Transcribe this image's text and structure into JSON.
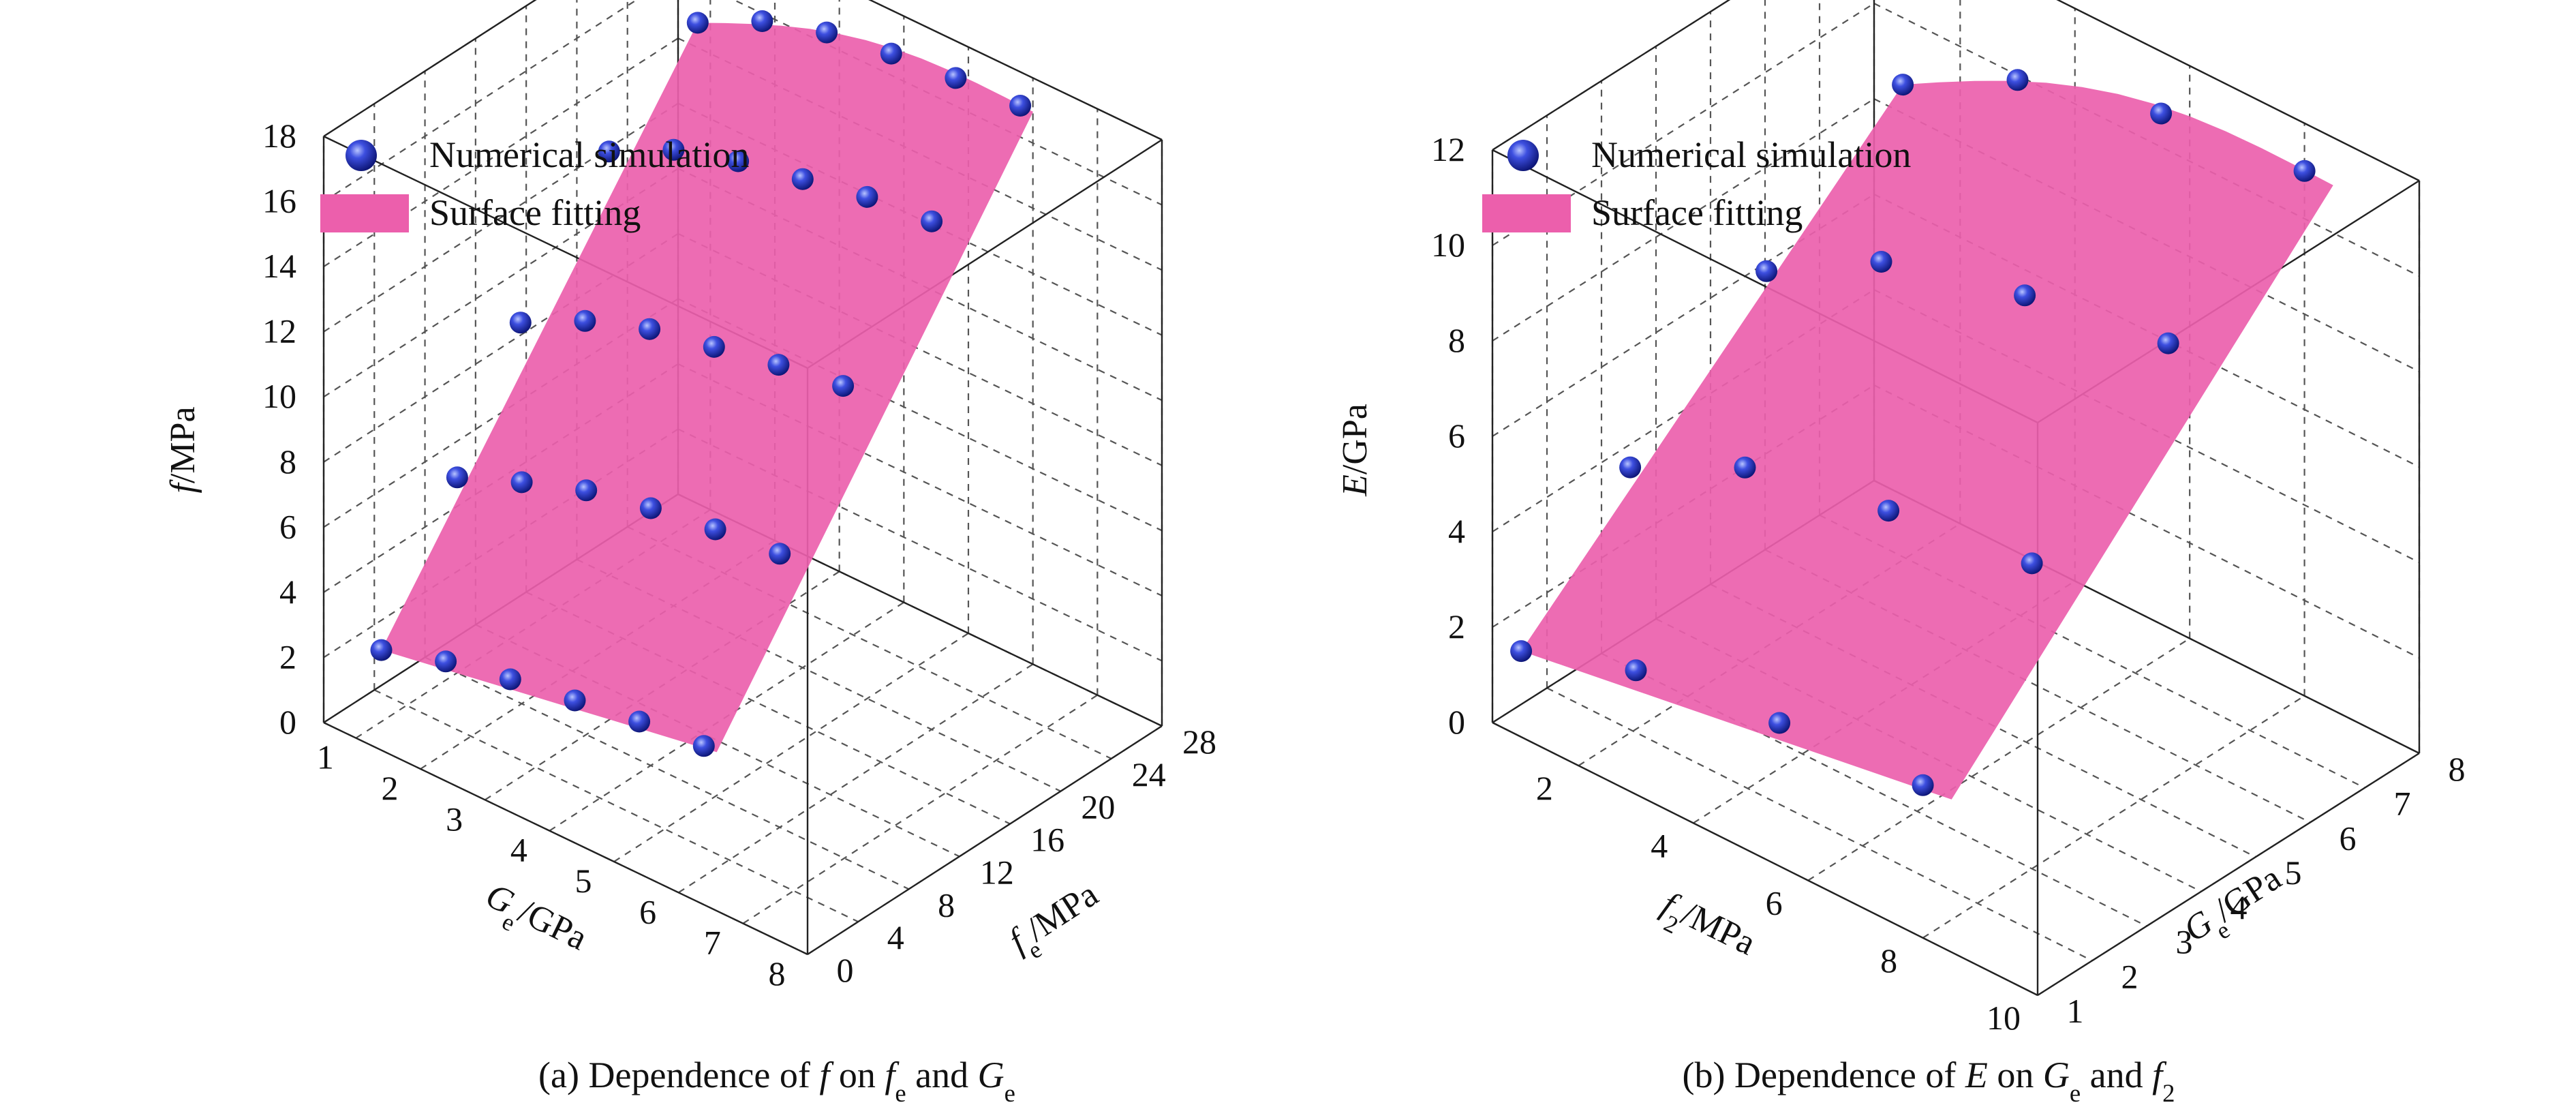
{
  "colors": {
    "surface": "#ec5fac",
    "marker": "#1f2fb0",
    "axis": "#222222",
    "grid": "#555555"
  },
  "legend": {
    "marker_label": "Numerical simulation",
    "surface_label": "Surface fitting"
  },
  "chart_data": [
    {
      "type": "scatter",
      "subtype": "3d-scatter-with-fitted-surface",
      "caption_parts": [
        "(a) Dependence of ",
        "f",
        " on ",
        "f",
        "e",
        " and ",
        "G",
        "e"
      ],
      "zlabel_parts": [
        "f",
        "/MPa"
      ],
      "xlabel_parts": [
        "G",
        "e",
        "/GPa"
      ],
      "ylabel_parts": [
        "f",
        "e",
        "/MPa"
      ],
      "x_ticks": [
        "1",
        "2",
        "3",
        "4",
        "5",
        "6",
        "7",
        "8"
      ],
      "y_ticks": [
        "0",
        "4",
        "8",
        "12",
        "16",
        "20",
        "24",
        "28"
      ],
      "z_ticks": [
        "0",
        "2",
        "4",
        "6",
        "8",
        "10",
        "12",
        "14",
        "16",
        "18"
      ],
      "xlim": [
        0.5,
        8
      ],
      "ylim": [
        0,
        28
      ],
      "zlim": [
        0,
        18
      ],
      "grid": true,
      "legend_position": "top-left",
      "series": [
        {
          "name": "Numerical simulation",
          "points": [
            [
              1,
              2,
              2.2
            ],
            [
              2,
              2,
              2.8
            ],
            [
              3,
              2,
              3.2
            ],
            [
              4,
              2,
              3.5
            ],
            [
              5,
              2,
              3.8
            ],
            [
              6,
              2,
              4.0
            ],
            [
              1,
              8,
              6.0
            ],
            [
              2,
              8,
              6.8
            ],
            [
              3,
              8,
              7.5
            ],
            [
              4,
              8,
              7.9
            ],
            [
              5,
              8,
              8.2
            ],
            [
              6,
              8,
              8.4
            ],
            [
              1,
              13,
              9.5
            ],
            [
              2,
              13,
              10.5
            ],
            [
              3,
              13,
              11.2
            ],
            [
              4,
              13,
              11.6
            ],
            [
              5,
              13,
              12.0
            ],
            [
              6,
              13,
              12.3
            ],
            [
              1,
              20,
              13.0
            ],
            [
              2,
              20,
              14.0
            ],
            [
              3,
              20,
              14.6
            ],
            [
              4,
              20,
              15.0
            ],
            [
              5,
              20,
              15.4
            ],
            [
              6,
              20,
              15.6
            ],
            [
              1,
              27,
              15.2
            ],
            [
              2,
              27,
              16.2
            ],
            [
              3,
              27,
              16.8
            ],
            [
              4,
              27,
              17.1
            ],
            [
              5,
              27,
              17.3
            ],
            [
              6,
              27,
              17.4
            ]
          ]
        },
        {
          "name": "Surface fitting",
          "surface": true
        }
      ]
    },
    {
      "type": "scatter",
      "subtype": "3d-scatter-with-fitted-surface",
      "caption_parts": [
        "(b) Dependence of ",
        "E",
        " on ",
        "G",
        "e",
        " and ",
        "f",
        "2"
      ],
      "zlabel_parts": [
        "E",
        "/GPa"
      ],
      "xlabel_parts": [
        "f",
        "2",
        "/MPa"
      ],
      "ylabel_parts": [
        "G",
        "e",
        "/GPa"
      ],
      "x_ticks": [
        "2",
        "4",
        "6",
        "8",
        "10"
      ],
      "y_ticks": [
        "1",
        "2",
        "3",
        "4",
        "5",
        "6",
        "7",
        "8"
      ],
      "z_ticks": [
        "0",
        "2",
        "4",
        "6",
        "8",
        "10",
        "12"
      ],
      "xlim": [
        0.5,
        10
      ],
      "ylim": [
        1,
        8
      ],
      "zlim": [
        0,
        12
      ],
      "grid": true,
      "legend_position": "top-left",
      "series": [
        {
          "name": "Numerical simulation",
          "points": [
            [
              1,
              1,
              1.8
            ],
            [
              3,
              1,
              2.6
            ],
            [
              5.5,
              1,
              3.0
            ],
            [
              8,
              1,
              3.2
            ],
            [
              1,
              3,
              4.2
            ],
            [
              3,
              3,
              5.4
            ],
            [
              5.5,
              3,
              6.0
            ],
            [
              8,
              3,
              6.4
            ],
            [
              1,
              5.5,
              6.5
            ],
            [
              3,
              5.5,
              7.9
            ],
            [
              5.5,
              5.5,
              8.7
            ],
            [
              8,
              5.5,
              9.2
            ],
            [
              1,
              8,
              8.6
            ],
            [
              3,
              8,
              9.9
            ],
            [
              5.5,
              8,
              10.7
            ],
            [
              8,
              8,
              11.0
            ]
          ]
        },
        {
          "name": "Surface fitting",
          "surface": true
        }
      ]
    }
  ]
}
